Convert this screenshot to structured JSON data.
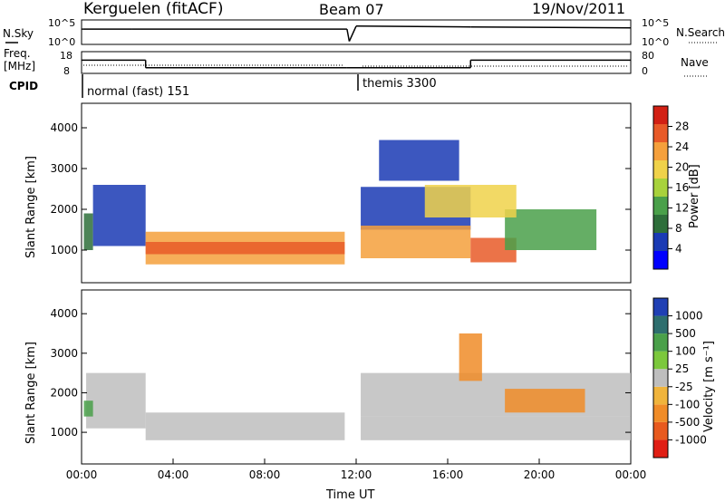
{
  "header": {
    "station": "Kerguelen (fitACF)",
    "beam": "Beam 07",
    "date": "19/Nov/2011"
  },
  "strip_labels": {
    "nsky": "N.Sky",
    "nsearch": "N.Search",
    "freq_line1": "Freq.",
    "freq_line2": "[MHz]",
    "nave": "Nave",
    "cpid": "CPID"
  },
  "cpid_modes": [
    "normal (fast) 151",
    "themis 3300"
  ],
  "colors": {
    "trace": "#000000",
    "power_scale": [
      "#0000ff",
      "#1a3ab4",
      "#2e6e3a",
      "#4aa04a",
      "#a8d23c",
      "#f0d24a",
      "#f5a03c",
      "#e85a28",
      "#d22014"
    ],
    "velocity_scale": [
      "#2040b4",
      "#2e6e6e",
      "#4aa04a",
      "#7cc83c",
      "#bebebe",
      "#f0b43c",
      "#f08c28",
      "#e85a1e",
      "#e01e14"
    ]
  },
  "chart_data": [
    {
      "type": "line",
      "name": "nsky-nsearch",
      "left_axis": {
        "label": "N.Sky",
        "ticks": [
          "10^5",
          "10^0"
        ]
      },
      "right_axis": {
        "label": "N.Search",
        "ticks": [
          "10^5",
          "10^0"
        ]
      },
      "x": [
        0,
        0.05,
        2.2,
        11.6,
        11.7,
        12.0,
        17.0,
        24.0
      ],
      "series": [
        {
          "name": "N.Sky",
          "values": [
            3.3,
            3.3,
            3.3,
            3.3,
            0.5,
            4.0,
            3.8,
            3.6
          ]
        }
      ]
    },
    {
      "type": "line",
      "name": "freq-nave",
      "left_axis": {
        "label": "Freq. [MHz]",
        "ticks": [
          "18",
          "8"
        ]
      },
      "right_axis": {
        "label": "Nave",
        "ticks": [
          "80",
          "0"
        ]
      },
      "x": [
        0,
        2.8,
        2.8,
        11.6,
        12.0,
        17.0,
        17.0,
        24.0
      ],
      "series": [
        {
          "name": "Freq.",
          "values": [
            14.5,
            14.5,
            10.5,
            10.5,
            10.5,
            10.5,
            14.5,
            14.5
          ]
        }
      ]
    },
    {
      "type": "heatmap",
      "name": "power-panel",
      "ylabel": "Slant Range [km]",
      "yticks": [
        1000,
        2000,
        3000,
        4000
      ],
      "colorbar_label": "Power [dB]",
      "colorbar_ticks": [
        4,
        8,
        12,
        16,
        20,
        24,
        28
      ],
      "xlim": [
        0,
        24
      ],
      "ylim": [
        200,
        4600
      ],
      "regions": [
        {
          "x": [
            0.1,
            0.5
          ],
          "y": [
            1000,
            1900
          ],
          "level": 9
        },
        {
          "x": [
            0.5,
            2.8
          ],
          "y": [
            1100,
            2600
          ],
          "level": 5
        },
        {
          "x": [
            2.8,
            11.5
          ],
          "y": [
            650,
            1450
          ],
          "level": 22
        },
        {
          "x": [
            2.8,
            11.5
          ],
          "y": [
            900,
            1200
          ],
          "level": 26
        },
        {
          "x": [
            12.2,
            17.0
          ],
          "y": [
            1500,
            2550
          ],
          "level": 6
        },
        {
          "x": [
            12.2,
            17.0
          ],
          "y": [
            800,
            1600
          ],
          "level": 22
        },
        {
          "x": [
            13.0,
            16.5
          ],
          "y": [
            2700,
            3700
          ],
          "level": 5
        },
        {
          "x": [
            17.0,
            19.0
          ],
          "y": [
            700,
            1300
          ],
          "level": 27
        },
        {
          "x": [
            18.5,
            22.5
          ],
          "y": [
            1000,
            2000
          ],
          "level": 12
        },
        {
          "x": [
            15.0,
            19.0
          ],
          "y": [
            1800,
            2600
          ],
          "level": 18
        }
      ]
    },
    {
      "type": "heatmap",
      "name": "velocity-panel",
      "ylabel": "Slant Range [km]",
      "yticks": [
        1000,
        2000,
        3000,
        4000
      ],
      "xlabel": "Time UT",
      "xticks": [
        "00:00",
        "04:00",
        "08:00",
        "12:00",
        "16:00",
        "20:00",
        "00:00"
      ],
      "colorbar_label": "Velocity [m s⁻¹]",
      "colorbar_ticks": [
        1000,
        500,
        100,
        25,
        -25,
        -100,
        -500,
        -1000
      ],
      "xlim": [
        0,
        24
      ],
      "ylim": [
        200,
        4600
      ],
      "regions": [
        {
          "x": [
            0.2,
            2.8
          ],
          "y": [
            1100,
            2500
          ],
          "level": 0
        },
        {
          "x": [
            2.8,
            11.5
          ],
          "y": [
            800,
            1500
          ],
          "level": 0
        },
        {
          "x": [
            0.1,
            0.5
          ],
          "y": [
            1400,
            1800
          ],
          "level": 200
        },
        {
          "x": [
            12.2,
            24.0
          ],
          "y": [
            1400,
            2500
          ],
          "level": 0
        },
        {
          "x": [
            12.2,
            24.0
          ],
          "y": [
            800,
            1400
          ],
          "level": 0
        },
        {
          "x": [
            16.5,
            17.5
          ],
          "y": [
            2300,
            3500
          ],
          "level": -200
        },
        {
          "x": [
            18.5,
            22.0
          ],
          "y": [
            1500,
            2100
          ],
          "level": -300
        }
      ]
    }
  ]
}
